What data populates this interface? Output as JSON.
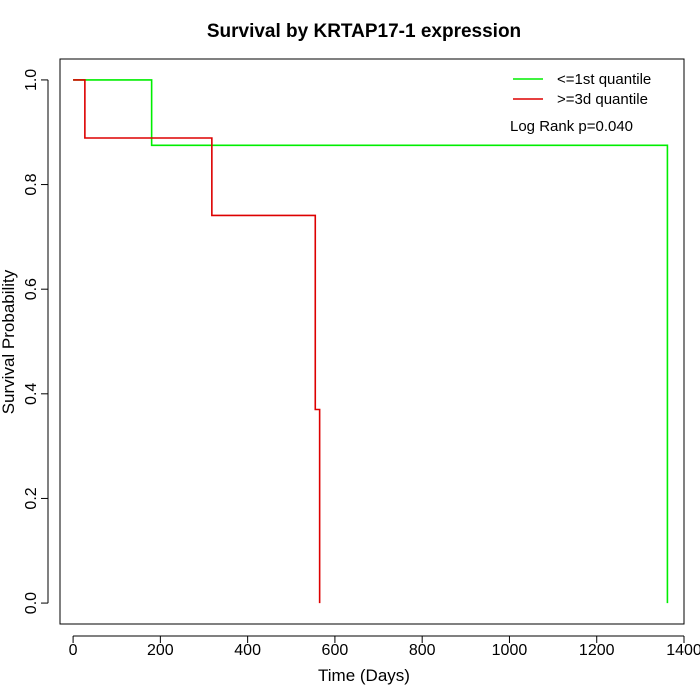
{
  "chart_data": {
    "type": "line",
    "title": "Survival by KRTAP17-1 expression",
    "xlabel": "Time (Days)",
    "ylabel": "Survival Probability",
    "xlim": [
      -30,
      1400
    ],
    "ylim": [
      -0.04,
      1.04
    ],
    "xticks": [
      0,
      200,
      400,
      600,
      800,
      1000,
      1200,
      1400
    ],
    "yticks": [
      0.0,
      0.2,
      0.4,
      0.6,
      0.8,
      1.0
    ],
    "xtick_labels": [
      "0",
      "200",
      "400",
      "600",
      "800",
      "1000",
      "1200",
      "1400"
    ],
    "ytick_labels": [
      "0.0",
      "0.2",
      "0.4",
      "0.6",
      "0.8",
      "1.0"
    ],
    "grid": false,
    "legend_position": "top-right",
    "annotation": "Log Rank p=0.040",
    "series": [
      {
        "name": "<=1st quantile",
        "color": "#00ee00",
        "step": true,
        "x": [
          0,
          180,
          1362,
          1362
        ],
        "y": [
          1.0,
          0.875,
          0.875,
          0.0
        ]
      },
      {
        "name": ">=3d quantile",
        "color": "#dd0000",
        "step": true,
        "x": [
          0,
          27,
          318,
          555,
          565,
          565
        ],
        "y": [
          1.0,
          0.889,
          0.741,
          0.37,
          0.37,
          0.0
        ]
      }
    ]
  }
}
